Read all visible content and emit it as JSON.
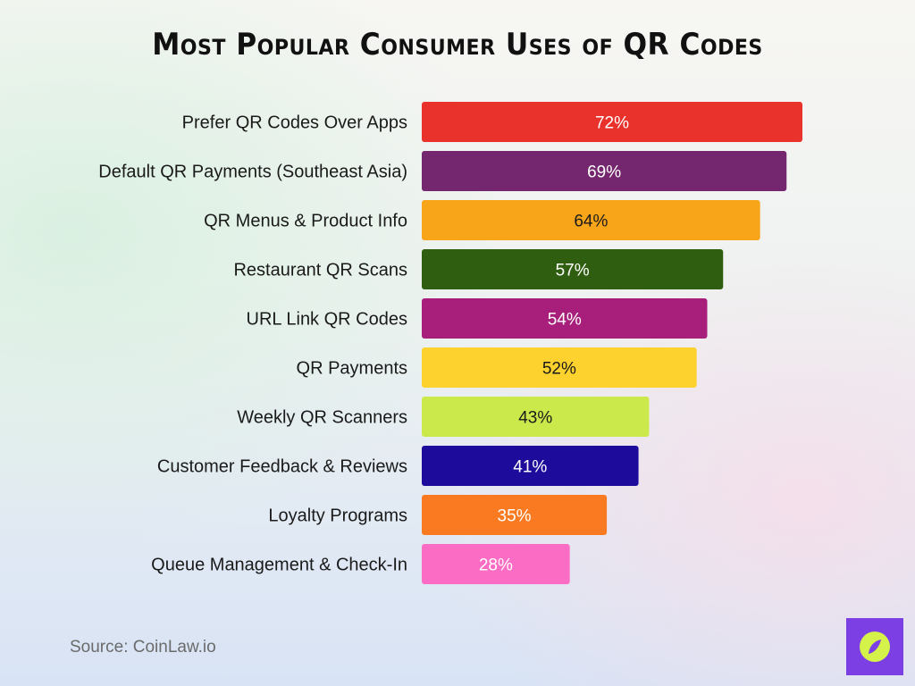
{
  "chart_data": {
    "type": "bar",
    "orientation": "horizontal",
    "title": "Most Popular Consumer Uses of QR Codes",
    "categories": [
      "Prefer QR Codes Over Apps",
      "Default QR Payments (Southeast Asia)",
      "QR Menus & Product Info",
      "Restaurant QR Scans",
      "URL Link QR Codes",
      "QR Payments",
      "Weekly QR Scanners",
      "Customer Feedback & Reviews",
      "Loyalty Programs",
      "Queue Management & Check-In"
    ],
    "values": [
      72,
      69,
      64,
      57,
      54,
      52,
      43,
      41,
      35,
      28
    ],
    "value_labels": [
      "72%",
      "69%",
      "64%",
      "57%",
      "54%",
      "52%",
      "43%",
      "41%",
      "35%",
      "28%"
    ],
    "colors": [
      "#e8322b",
      "#74276e",
      "#f9a51a",
      "#305e10",
      "#a71f7a",
      "#fdd22e",
      "#cbe94a",
      "#1d0c9b",
      "#f97a20",
      "#fb6cc4"
    ],
    "label_colors": [
      "#ffffff",
      "#ffffff",
      "#1a1a1a",
      "#ffffff",
      "#ffffff",
      "#1a1a1a",
      "#1a1a1a",
      "#ffffff",
      "#ffffff",
      "#ffffff"
    ],
    "xlabel": "",
    "ylabel": "",
    "xlim": [
      0,
      72
    ],
    "grid": false,
    "legend": "none"
  },
  "footer": {
    "source": "Source: CoinLaw.io"
  },
  "logo": {
    "icon": "compass-leaf-icon",
    "background": "#7b3fe4",
    "accent": "#d4f24a"
  }
}
